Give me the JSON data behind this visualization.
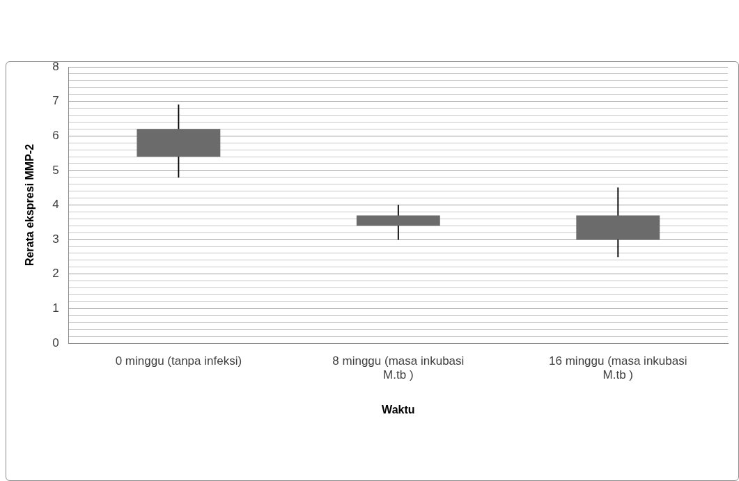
{
  "chart_data": {
    "type": "candlestick",
    "xlabel": "Waktu",
    "ylabel": "Rerata ekspresi MMP-2",
    "categories": [
      "0 minggu (tanpa infeksi)",
      "8 minggu (masa inkubasi M.tb )",
      "16 minggu (masa inkubasi M.tb )"
    ],
    "ohlc": [
      [
        6.2,
        6.9,
        4.8,
        5.4
      ],
      [
        3.7,
        4.0,
        3.0,
        3.4
      ],
      [
        3.7,
        4.5,
        2.5,
        3.0
      ]
    ],
    "color": "#6b6b6b",
    "ylim": [
      0,
      8
    ],
    "yticks": [
      0,
      {
        "value": 0.2,
        "label": null
      },
      {
        "value": 0.4,
        "label": null
      },
      {
        "value": 0.6,
        "label": null
      },
      {
        "value": 0.8,
        "label": null
      },
      1,
      {
        "value": 1.2,
        "label": null
      },
      {
        "value": 1.4,
        "label": null
      },
      {
        "value": 1.6,
        "label": null
      },
      {
        "value": 1.8,
        "label": null
      },
      2,
      {
        "value": 2.2,
        "label": null
      },
      {
        "value": 2.4,
        "label": null
      },
      {
        "value": 2.6,
        "label": null
      },
      {
        "value": 2.8,
        "label": null
      },
      3,
      {
        "value": 3.2,
        "label": null
      },
      {
        "value": 3.4,
        "label": null
      },
      {
        "value": 3.6,
        "label": null
      },
      {
        "value": 3.8,
        "label": null
      },
      4,
      {
        "value": 4.2,
        "label": null
      },
      {
        "value": 4.4,
        "label": null
      },
      {
        "value": 4.6,
        "label": null
      },
      {
        "value": 4.8,
        "label": null
      },
      5,
      {
        "value": 5.2,
        "label": null
      },
      {
        "value": 5.4,
        "label": null
      },
      {
        "value": 5.6,
        "label": null
      },
      {
        "value": 5.8,
        "label": null
      },
      6,
      {
        "value": 6.2,
        "label": null
      },
      {
        "value": 6.4,
        "label": null
      },
      {
        "value": 6.6,
        "label": null
      },
      {
        "value": 6.8,
        "label": null
      },
      7,
      {
        "value": 7.2,
        "label": null
      },
      {
        "value": 7.4,
        "label": null
      },
      {
        "value": 7.6,
        "label": null
      },
      {
        "value": 7.8,
        "label": null
      },
      8
    ],
    "grid": "y"
  }
}
